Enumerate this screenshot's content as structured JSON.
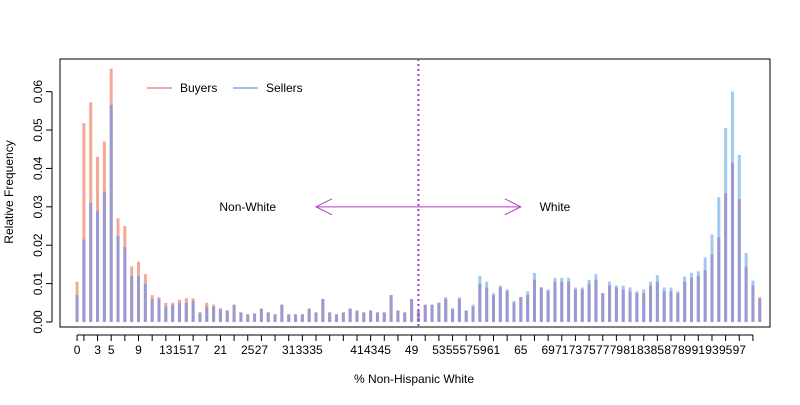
{
  "chart_data": {
    "type": "bar",
    "title": "",
    "xlabel": "% Non-Hispanic White",
    "ylabel": "Relative Frequency",
    "xlim": [
      -2.5,
      101.5
    ],
    "ylim": [
      -0.0013,
      0.0685
    ],
    "x_ticks": [
      0,
      1,
      3,
      5,
      7,
      9,
      11,
      13,
      15,
      17,
      19,
      21,
      23,
      25,
      27,
      29,
      31,
      33,
      35,
      37,
      39,
      41,
      43,
      45,
      47,
      49,
      51,
      53,
      55,
      57,
      59,
      61,
      63,
      65,
      67,
      69,
      71,
      73,
      75,
      77,
      79,
      81,
      83,
      85,
      87,
      89,
      91,
      93,
      95,
      97,
      99
    ],
    "x_tick_labels": [
      "0",
      "",
      "3",
      "5",
      "",
      "9",
      "",
      "13",
      "15",
      "17",
      "",
      "21",
      "",
      "25",
      "27",
      "",
      "31",
      "33",
      "35",
      "",
      "",
      "41",
      "43",
      "45",
      "",
      "49",
      "",
      "53",
      "55",
      "57",
      "59",
      "61",
      "",
      "65",
      "",
      "69",
      "71",
      "73",
      "75",
      "77",
      "79",
      "81",
      "83",
      "85",
      "87",
      "89",
      "91",
      "93",
      "95",
      "97",
      ""
    ],
    "y_ticks": [
      0,
      0.01,
      0.02,
      0.03,
      0.04,
      0.05,
      0.06
    ],
    "y_tick_labels": [
      "0.00",
      "0.01",
      "0.02",
      "0.03",
      "0.04",
      "0.05",
      "0.06"
    ],
    "grid": false,
    "legend_position": "top-left",
    "annotations": [
      {
        "text": "Non-White",
        "x": 25,
        "y": 0.03
      },
      {
        "text": "White",
        "x": 70,
        "y": 0.03
      }
    ],
    "arrow": {
      "from": 35,
      "to": 65,
      "y": 0.03,
      "color": "#b040c0"
    },
    "vline": {
      "x": 50,
      "color": "#a040c0",
      "style": "dotted"
    },
    "x": [
      0,
      1,
      2,
      3,
      4,
      5,
      6,
      7,
      8,
      9,
      10,
      11,
      12,
      13,
      14,
      15,
      16,
      17,
      18,
      19,
      20,
      21,
      22,
      23,
      24,
      25,
      26,
      27,
      28,
      29,
      30,
      31,
      32,
      33,
      34,
      35,
      36,
      37,
      38,
      39,
      40,
      41,
      42,
      43,
      44,
      45,
      46,
      47,
      48,
      49,
      50,
      51,
      52,
      53,
      54,
      55,
      56,
      57,
      58,
      59,
      60,
      61,
      62,
      63,
      64,
      65,
      66,
      67,
      68,
      69,
      70,
      71,
      72,
      73,
      74,
      75,
      76,
      77,
      78,
      79,
      80,
      81,
      82,
      83,
      84,
      85,
      86,
      87,
      88,
      89,
      90,
      91,
      92,
      93,
      94,
      95,
      96,
      97,
      98,
      99,
      100
    ],
    "series": [
      {
        "name": "Buyers",
        "color": "#f4a896",
        "values": [
          0.0105,
          0.0518,
          0.0572,
          0.043,
          0.047,
          0.066,
          0.027,
          0.025,
          0.0145,
          0.0157,
          0.0125,
          0.007,
          0.0065,
          0.005,
          0.005,
          0.0058,
          0.0062,
          0.0062,
          0.0025,
          0.005,
          0.0045,
          0.0035,
          0.003,
          0.0045,
          0.0025,
          0.002,
          0.0022,
          0.0035,
          0.0025,
          0.002,
          0.0045,
          0.002,
          0.002,
          0.002,
          0.0035,
          0.0025,
          0.006,
          0.0025,
          0.002,
          0.0025,
          0.0035,
          0.003,
          0.0025,
          0.003,
          0.0025,
          0.0025,
          0.007,
          0.003,
          0.0025,
          0.006,
          0.003,
          0.0045,
          0.0045,
          0.005,
          0.006,
          0.0035,
          0.006,
          0.003,
          0.004,
          0.01,
          0.009,
          0.007,
          0.009,
          0.008,
          0.005,
          0.0065,
          0.007,
          0.011,
          0.009,
          0.008,
          0.0105,
          0.0105,
          0.0105,
          0.0085,
          0.0085,
          0.01,
          0.011,
          0.0075,
          0.0095,
          0.009,
          0.0085,
          0.008,
          0.0075,
          0.0075,
          0.0095,
          0.0105,
          0.008,
          0.008,
          0.0075,
          0.0105,
          0.0115,
          0.012,
          0.0135,
          0.0175,
          0.022,
          0.0335,
          0.0415,
          0.032,
          0.0145,
          0.0095,
          0.0065
        ]
      },
      {
        "name": "Sellers",
        "color": "#9fcbee",
        "values": [
          0.007,
          0.0215,
          0.031,
          0.029,
          0.034,
          0.0565,
          0.0225,
          0.0195,
          0.012,
          0.012,
          0.01,
          0.006,
          0.006,
          0.004,
          0.0045,
          0.005,
          0.005,
          0.0055,
          0.0025,
          0.004,
          0.004,
          0.0035,
          0.003,
          0.0045,
          0.0025,
          0.002,
          0.0022,
          0.0035,
          0.0025,
          0.002,
          0.0045,
          0.002,
          0.002,
          0.002,
          0.0035,
          0.0025,
          0.006,
          0.0025,
          0.002,
          0.0025,
          0.0035,
          0.003,
          0.0025,
          0.003,
          0.0025,
          0.0025,
          0.007,
          0.003,
          0.0025,
          0.006,
          0.003,
          0.0045,
          0.0045,
          0.005,
          0.0065,
          0.0035,
          0.0065,
          0.003,
          0.0045,
          0.012,
          0.0105,
          0.0075,
          0.0095,
          0.0085,
          0.0055,
          0.0065,
          0.008,
          0.0128,
          0.009,
          0.0085,
          0.0115,
          0.0115,
          0.0115,
          0.009,
          0.009,
          0.011,
          0.0125,
          0.0075,
          0.0105,
          0.0095,
          0.0095,
          0.009,
          0.008,
          0.0085,
          0.0105,
          0.0122,
          0.009,
          0.009,
          0.008,
          0.0118,
          0.0128,
          0.0132,
          0.0168,
          0.0228,
          0.0325,
          0.0505,
          0.06,
          0.0435,
          0.018,
          0.0108,
          0.006
        ]
      }
    ]
  }
}
